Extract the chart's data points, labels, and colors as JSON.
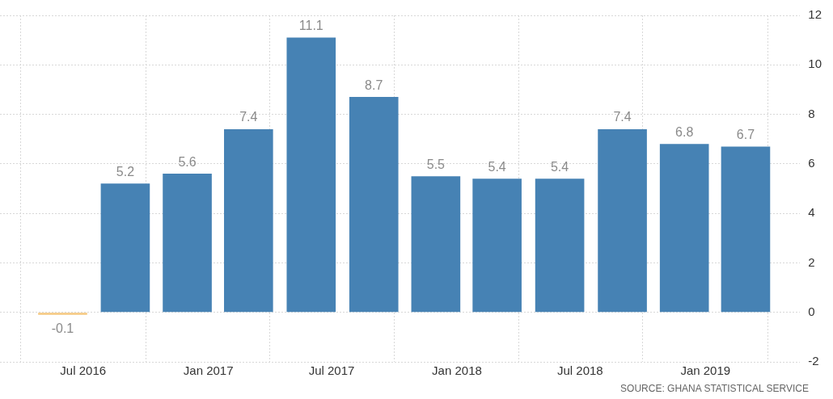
{
  "chart_data": {
    "type": "bar",
    "x": [
      "2016-06",
      "2016-09",
      "2016-12",
      "2017-03",
      "2017-06",
      "2017-09",
      "2017-12",
      "2018-03",
      "2018-06",
      "2018-09",
      "2018-12",
      "2019-03"
    ],
    "values": [
      -0.1,
      5.2,
      5.6,
      7.4,
      11.1,
      8.7,
      5.5,
      5.4,
      5.4,
      7.4,
      6.8,
      6.7
    ],
    "colors": [
      "#f5c77e",
      "#4682b4",
      "#4682b4",
      "#4682b4",
      "#4682b4",
      "#4682b4",
      "#4682b4",
      "#4682b4",
      "#4682b4",
      "#4682b4",
      "#4682b4",
      "#4682b4"
    ],
    "xlim": [
      "2016-03-01",
      "2019-05-20"
    ],
    "xticks": [
      {
        "value": "2016-07",
        "label": "Jul 2016"
      },
      {
        "value": "2017-01",
        "label": "Jan 2017"
      },
      {
        "value": "2017-07",
        "label": "Jul 2017"
      },
      {
        "value": "2018-01",
        "label": "Jan 2018"
      },
      {
        "value": "2018-07",
        "label": "Jul 2018"
      },
      {
        "value": "2019-01",
        "label": "Jan 2019"
      }
    ],
    "ylim": [
      -2,
      12
    ],
    "yticks": [
      -2,
      0,
      2,
      4,
      6,
      8,
      10,
      12
    ],
    "grid": true,
    "data_labels": true,
    "annotations": [
      "SOURCE: GHANA STATISTICAL SERVICE"
    ]
  }
}
